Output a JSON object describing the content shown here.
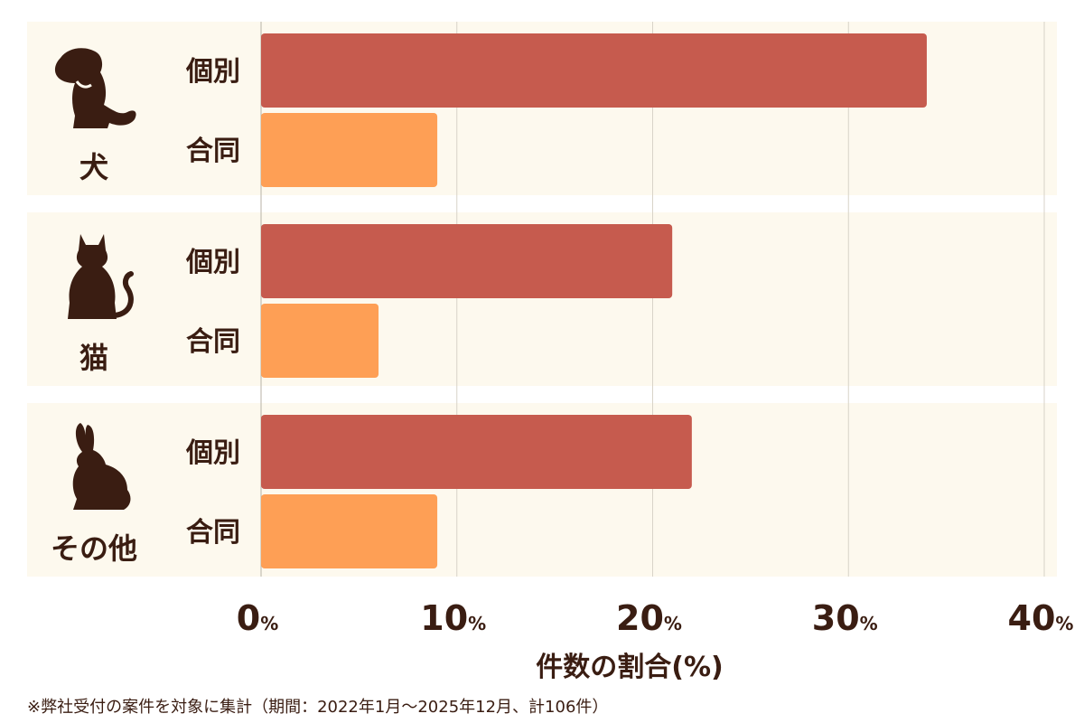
{
  "chart_data": {
    "type": "bar",
    "orientation": "horizontal",
    "xlabel": "件数の割合(%)",
    "xlim": [
      0,
      40
    ],
    "xticks": [
      0,
      10,
      20,
      30,
      40
    ],
    "tick_unit": "%",
    "grid": true,
    "groups": [
      {
        "name": "犬",
        "icon": "dog-icon",
        "bars": [
          {
            "label": "個別",
            "value": 34
          },
          {
            "label": "合同",
            "value": 9
          }
        ]
      },
      {
        "name": "猫",
        "icon": "cat-icon",
        "bars": [
          {
            "label": "個別",
            "value": 21
          },
          {
            "label": "合同",
            "value": 6
          }
        ]
      },
      {
        "name": "その他",
        "icon": "rabbit-icon",
        "bars": [
          {
            "label": "個別",
            "value": 22
          },
          {
            "label": "合同",
            "value": 9
          }
        ]
      }
    ],
    "colors": {
      "個別": "#c65b4e",
      "合同": "#fe9f55",
      "panel": "#fdf9ee",
      "grid": "#d8d3c8",
      "text": "#3a1d12"
    }
  },
  "footnote": "※弊社受付の案件を対象に集計（期間：2022年1月〜2025年12月、計106件）"
}
